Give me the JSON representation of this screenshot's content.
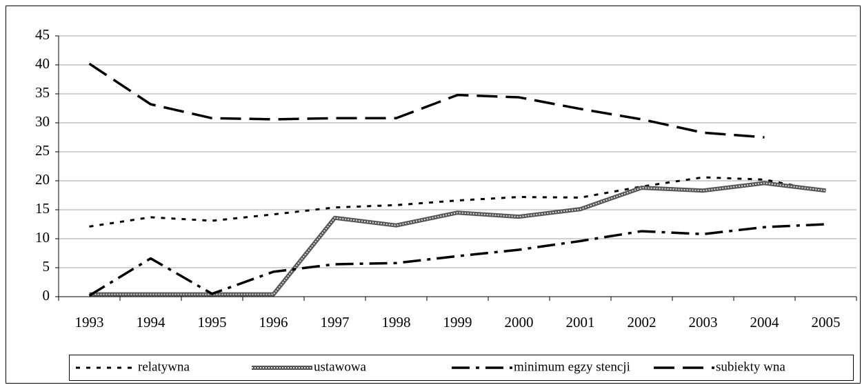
{
  "chart_data": {
    "type": "line",
    "categories": [
      "1993",
      "1994",
      "1995",
      "1996",
      "1997",
      "1998",
      "1999",
      "2000",
      "2001",
      "2002",
      "2003",
      "2004",
      "2005"
    ],
    "series": [
      {
        "name": "relatywna",
        "color": "#000000",
        "values": [
          12.1,
          13.7,
          13.1,
          14.2,
          15.4,
          15.8,
          16.6,
          17.2,
          17.1,
          19.0,
          20.6,
          20.2,
          18.1
        ]
      },
      {
        "name": "ustawowa",
        "color": "#555555",
        "values": [
          0.4,
          0.4,
          0.4,
          0.4,
          13.6,
          12.3,
          14.5,
          13.8,
          15.1,
          18.8,
          18.3,
          19.6,
          18.3
        ]
      },
      {
        "name": "minimum egzy stencji",
        "color": "#000000",
        "values": [
          0.2,
          6.6,
          0.5,
          4.3,
          5.6,
          5.8,
          7.0,
          8.1,
          9.6,
          11.3,
          10.8,
          12.0,
          12.5
        ]
      },
      {
        "name": "subiekty wna",
        "color": "#000000",
        "values": [
          40.2,
          33.2,
          30.8,
          30.6,
          30.8,
          30.8,
          34.8,
          34.4,
          32.4,
          30.6,
          28.3,
          27.5,
          null
        ]
      }
    ],
    "ylim": [
      0,
      45
    ],
    "yticks": [
      0,
      5,
      10,
      15,
      20,
      25,
      30,
      35,
      40,
      45
    ],
    "grid": true,
    "legend": "bottom"
  }
}
